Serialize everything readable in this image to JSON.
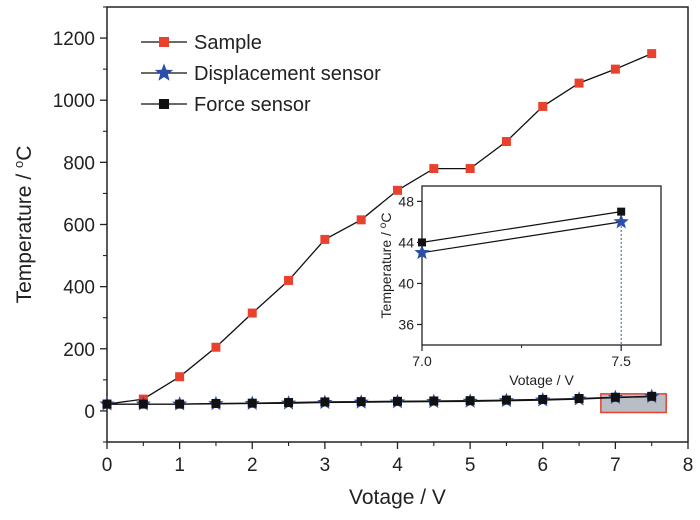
{
  "chart_data": [
    {
      "type": "line",
      "xlabel": "Votage / V",
      "ylabel": "Temperature / ",
      "ylabel_unit": "C",
      "ylabel_super": "o",
      "xlim": [
        0,
        8
      ],
      "ylim": [
        -100,
        1300
      ],
      "xticks": [
        0,
        1,
        2,
        3,
        4,
        5,
        6,
        7,
        8
      ],
      "yticks": [
        0,
        200,
        400,
        600,
        800,
        1000,
        1200
      ],
      "legend_position": "top-left",
      "grid": false,
      "series": [
        {
          "name": "Sample",
          "marker": "square",
          "marker_color": "#e8412e",
          "x": [
            0,
            0.5,
            1,
            1.5,
            2,
            2.5,
            3,
            3.5,
            4,
            4.5,
            5,
            5.5,
            6,
            6.5,
            7,
            7.5
          ],
          "y": [
            22,
            38,
            110,
            205,
            315,
            420,
            552,
            615,
            710,
            780,
            780,
            867,
            980,
            1055,
            1100,
            1150
          ]
        },
        {
          "name": "Displacement sensor",
          "marker": "star",
          "marker_color": "#2b4fa8",
          "x": [
            0,
            0.5,
            1,
            1.5,
            2,
            2.5,
            3,
            3.5,
            4,
            4.5,
            5,
            5.5,
            6,
            6.5,
            7,
            7.5
          ],
          "y": [
            22,
            22,
            22,
            23,
            24,
            25,
            27,
            28,
            29,
            30,
            31,
            33,
            35,
            38,
            43,
            46
          ]
        },
        {
          "name": "Force sensor",
          "marker": "square",
          "marker_color": "#111111",
          "x": [
            0,
            0.5,
            1,
            1.5,
            2,
            2.5,
            3,
            3.5,
            4,
            4.5,
            5,
            5.5,
            6,
            6.5,
            7,
            7.5
          ],
          "y": [
            22,
            22,
            22,
            24,
            25,
            27,
            29,
            30,
            31,
            32,
            33,
            35,
            37,
            40,
            44,
            47
          ]
        }
      ],
      "highlight": {
        "x": [
          6.8,
          7.7
        ],
        "y": [
          -5,
          55
        ],
        "fill": "#b9bec6",
        "stroke": "#e8412e"
      }
    },
    {
      "type": "line",
      "role": "inset",
      "xlabel": "Votage / V",
      "ylabel": "Temperature / ",
      "ylabel_unit": "C",
      "ylabel_super": "o",
      "xlim": [
        7.0,
        7.6
      ],
      "ylim": [
        34,
        49.5
      ],
      "xticks": [
        7.0,
        7.5
      ],
      "xtick_labels": [
        "7.0",
        "7.5"
      ],
      "yticks": [
        36,
        40,
        44,
        48
      ],
      "series": [
        {
          "name": "Displacement sensor",
          "marker": "star",
          "marker_color": "#2b4fa8",
          "x": [
            7.0,
            7.5
          ],
          "y": [
            43,
            46
          ]
        },
        {
          "name": "Force sensor",
          "marker": "square",
          "marker_color": "#111111",
          "x": [
            7.0,
            7.5
          ],
          "y": [
            44,
            47
          ]
        }
      ]
    }
  ]
}
